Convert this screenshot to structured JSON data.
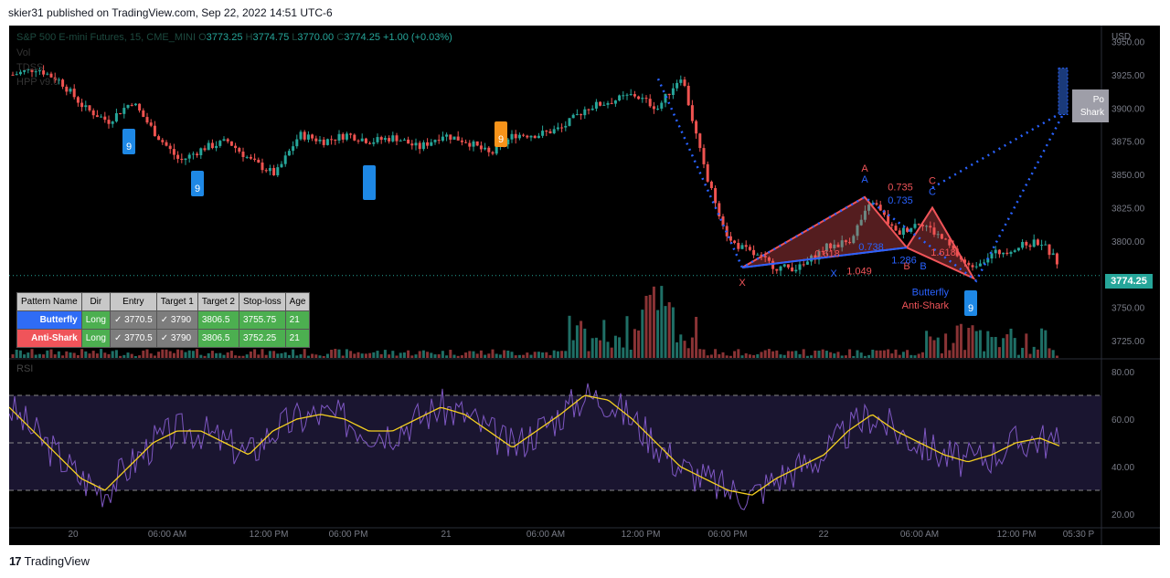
{
  "header": {
    "published": "skier31 published on TradingView.com, Sep 22, 2022 14:51 UTC-6"
  },
  "legend": {
    "symbol": "S&P 500 E-mini Futures, 15, CME_MINI",
    "o_label": "O",
    "o": "3773.25",
    "h_label": "H",
    "h": "3774.75",
    "l_label": "L",
    "l": "3770.00",
    "c_label": "C",
    "c": "3774.25",
    "change": "+1.00 (+0.03%)",
    "indicators": [
      "Vol",
      "TDSS",
      "HPP v9.0"
    ]
  },
  "price_axis": {
    "currency": "USD",
    "ticks": [
      "3950.00",
      "3925.00",
      "3900.00",
      "3875.00",
      "3850.00",
      "3825.00",
      "3800.00",
      "3750.00",
      "3725.00"
    ],
    "last_price": "3774.25"
  },
  "rsi": {
    "label": "RSI",
    "ticks": [
      "80.00",
      "60.00",
      "40.00",
      "20.00"
    ]
  },
  "time_axis": [
    "20",
    "06:00 AM",
    "12:00 PM",
    "06:00 PM",
    "21",
    "06:00 AM",
    "12:00 PM",
    "06:00 PM",
    "22",
    "06:00 AM",
    "12:00 PM",
    "05:30 P"
  ],
  "pattern_table": {
    "headers": [
      "Pattern Name",
      "Dir",
      "Entry",
      "Target 1",
      "Target 2",
      "Stop-loss",
      "Age"
    ],
    "rows": [
      [
        "Butterfly",
        "Long",
        "✓ 3770.5",
        "✓ 3790",
        "3806.5",
        "3755.75",
        "21"
      ],
      [
        "Anti-Shark",
        "Long",
        "✓ 3770.5",
        "✓ 3790",
        "3806.5",
        "3752.25",
        "21"
      ]
    ]
  },
  "annotations": {
    "points": [
      "A",
      "A",
      "C",
      "C",
      "X",
      "X",
      "B",
      "B"
    ],
    "ratios": [
      "0.735",
      "0.735",
      "0.618",
      "0.738",
      "1.286",
      "1.049",
      "1.618"
    ],
    "pattern_labels": [
      "Butterfly",
      "Anti-Shark"
    ],
    "td_counts": [
      "9",
      "9",
      "9",
      "9"
    ],
    "potential_box": [
      "Po",
      "Shark"
    ]
  },
  "chart_data": {
    "type": "line",
    "title": "",
    "price_range": [
      3712,
      3962
    ],
    "rsi_range": [
      15,
      85
    ],
    "grid": false,
    "colors": {
      "up": "#26a69a",
      "down": "#ef5350",
      "pattern_bull": "#f05459",
      "pattern_blue": "#2962ff",
      "rsi": "#7e57c2",
      "rsi_ma": "#f5d020"
    },
    "series": [
      {
        "values": [
          3925,
          3930,
          3920,
          3900,
          3890,
          3905,
          3880,
          3860,
          3870,
          3875,
          3860,
          3850,
          3880,
          3875,
          3880,
          3875,
          3878,
          3870,
          3880,
          3875,
          3865,
          3880,
          3880,
          3885,
          3900,
          3905,
          3910,
          3900,
          3925,
          3850,
          3800,
          3790,
          3780,
          3780,
          3795,
          3800,
          3830,
          3805,
          3815,
          3800,
          3780,
          3790,
          3795,
          3800,
          3778,
          3774
        ]
      },
      {
        "values": [
          65,
          55,
          45,
          35,
          30,
          40,
          50,
          55,
          55,
          50,
          45,
          55,
          60,
          62,
          60,
          55,
          55,
          60,
          65,
          62,
          55,
          48,
          55,
          62,
          70,
          68,
          60,
          50,
          40,
          35,
          30,
          28,
          35,
          40,
          45,
          55,
          62,
          55,
          50,
          45,
          42,
          45,
          50,
          52,
          48,
          45
        ]
      }
    ]
  }
}
